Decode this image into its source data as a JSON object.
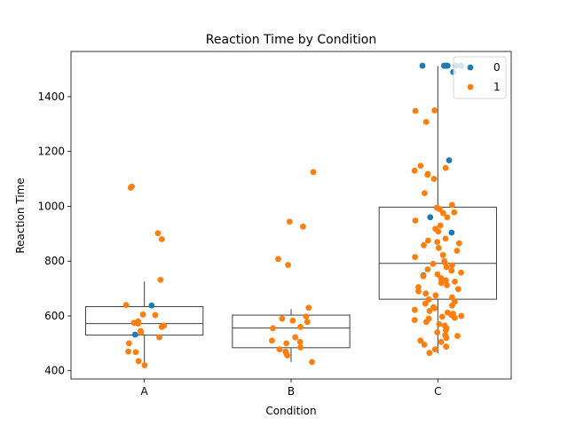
{
  "chart_data": {
    "type": "box+strip",
    "title": "Reaction Time by Condition",
    "xlabel": "Condition",
    "ylabel": "Reaction Time",
    "categories": [
      "A",
      "B",
      "C"
    ],
    "ylim": [
      370,
      1565
    ],
    "yticks": [
      400,
      600,
      800,
      1000,
      1200,
      1400
    ],
    "grid": false,
    "legend": {
      "placement": "top-right",
      "entries": [
        {
          "label": "0",
          "color": "#1f77b4"
        },
        {
          "label": "1",
          "color": "#ff7f0e"
        }
      ]
    },
    "box_stats": [
      {
        "category": "A",
        "whisker_low": 420,
        "q1": 530,
        "median": 572,
        "q3": 634,
        "whisker_high": 726
      },
      {
        "category": "B",
        "whisker_low": 432,
        "q1": 484,
        "median": 556,
        "q3": 603,
        "whisker_high": 625
      },
      {
        "category": "C",
        "whisker_low": 463,
        "q1": 661,
        "median": 792,
        "q3": 997,
        "whisker_high": 1512
      }
    ],
    "series": [
      {
        "name": "0",
        "color": "#1f77b4",
        "points": [
          {
            "x": "A",
            "y": 638
          },
          {
            "x": "A",
            "y": 532
          },
          {
            "x": "C",
            "y": 1513
          },
          {
            "x": "C",
            "y": 1513
          },
          {
            "x": "C",
            "y": 1513
          },
          {
            "x": "C",
            "y": 1513
          },
          {
            "x": "C",
            "y": 1513
          },
          {
            "x": "C",
            "y": 1513
          },
          {
            "x": "C",
            "y": 1513
          },
          {
            "x": "C",
            "y": 1490
          },
          {
            "x": "C",
            "y": 1168
          },
          {
            "x": "C",
            "y": 960
          },
          {
            "x": "C",
            "y": 904
          },
          {
            "x": "C",
            "y": 748
          },
          {
            "x": "C",
            "y": 732
          }
        ]
      },
      {
        "name": "1",
        "color": "#ff7f0e",
        "points": [
          {
            "x": "A",
            "y": 1072
          },
          {
            "x": "A",
            "y": 1068
          },
          {
            "x": "A",
            "y": 902
          },
          {
            "x": "A",
            "y": 880
          },
          {
            "x": "A",
            "y": 732
          },
          {
            "x": "A",
            "y": 640
          },
          {
            "x": "A",
            "y": 605
          },
          {
            "x": "A",
            "y": 603
          },
          {
            "x": "A",
            "y": 580
          },
          {
            "x": "A",
            "y": 575
          },
          {
            "x": "A",
            "y": 572
          },
          {
            "x": "A",
            "y": 565
          },
          {
            "x": "A",
            "y": 560
          },
          {
            "x": "A",
            "y": 545
          },
          {
            "x": "A",
            "y": 540
          },
          {
            "x": "A",
            "y": 522
          },
          {
            "x": "A",
            "y": 500
          },
          {
            "x": "A",
            "y": 470
          },
          {
            "x": "A",
            "y": 468
          },
          {
            "x": "A",
            "y": 435
          },
          {
            "x": "A",
            "y": 420
          },
          {
            "x": "B",
            "y": 1125
          },
          {
            "x": "B",
            "y": 944
          },
          {
            "x": "B",
            "y": 926
          },
          {
            "x": "B",
            "y": 808
          },
          {
            "x": "B",
            "y": 786
          },
          {
            "x": "B",
            "y": 630
          },
          {
            "x": "B",
            "y": 598
          },
          {
            "x": "B",
            "y": 590
          },
          {
            "x": "B",
            "y": 583
          },
          {
            "x": "B",
            "y": 578
          },
          {
            "x": "B",
            "y": 560
          },
          {
            "x": "B",
            "y": 555
          },
          {
            "x": "B",
            "y": 522
          },
          {
            "x": "B",
            "y": 510
          },
          {
            "x": "B",
            "y": 505
          },
          {
            "x": "B",
            "y": 500
          },
          {
            "x": "B",
            "y": 485
          },
          {
            "x": "B",
            "y": 478
          },
          {
            "x": "B",
            "y": 470
          },
          {
            "x": "B",
            "y": 462
          },
          {
            "x": "B",
            "y": 456
          },
          {
            "x": "B",
            "y": 432
          },
          {
            "x": "C",
            "y": 1350
          },
          {
            "x": "C",
            "y": 1348
          },
          {
            "x": "C",
            "y": 1308
          },
          {
            "x": "C",
            "y": 1148
          },
          {
            "x": "C",
            "y": 1140
          },
          {
            "x": "C",
            "y": 1130
          },
          {
            "x": "C",
            "y": 1118
          },
          {
            "x": "C",
            "y": 1115
          },
          {
            "x": "C",
            "y": 1100
          },
          {
            "x": "C",
            "y": 1048
          },
          {
            "x": "C",
            "y": 1005
          },
          {
            "x": "C",
            "y": 995
          },
          {
            "x": "C",
            "y": 990
          },
          {
            "x": "C",
            "y": 978
          },
          {
            "x": "C",
            "y": 975
          },
          {
            "x": "C",
            "y": 960
          },
          {
            "x": "C",
            "y": 948
          },
          {
            "x": "C",
            "y": 930
          },
          {
            "x": "C",
            "y": 918
          },
          {
            "x": "C",
            "y": 908
          },
          {
            "x": "C",
            "y": 882
          },
          {
            "x": "C",
            "y": 875
          },
          {
            "x": "C",
            "y": 870
          },
          {
            "x": "C",
            "y": 865
          },
          {
            "x": "C",
            "y": 858
          },
          {
            "x": "C",
            "y": 848
          },
          {
            "x": "C",
            "y": 838
          },
          {
            "x": "C",
            "y": 822
          },
          {
            "x": "C",
            "y": 815
          },
          {
            "x": "C",
            "y": 800
          },
          {
            "x": "C",
            "y": 795
          },
          {
            "x": "C",
            "y": 790
          },
          {
            "x": "C",
            "y": 785
          },
          {
            "x": "C",
            "y": 778
          },
          {
            "x": "C",
            "y": 770
          },
          {
            "x": "C",
            "y": 765
          },
          {
            "x": "C",
            "y": 758
          },
          {
            "x": "C",
            "y": 752
          },
          {
            "x": "C",
            "y": 745
          },
          {
            "x": "C",
            "y": 738
          },
          {
            "x": "C",
            "y": 730
          },
          {
            "x": "C",
            "y": 725
          },
          {
            "x": "C",
            "y": 720
          },
          {
            "x": "C",
            "y": 712
          },
          {
            "x": "C",
            "y": 705
          },
          {
            "x": "C",
            "y": 698
          },
          {
            "x": "C",
            "y": 690
          },
          {
            "x": "C",
            "y": 682
          },
          {
            "x": "C",
            "y": 675
          },
          {
            "x": "C",
            "y": 668
          },
          {
            "x": "C",
            "y": 660
          },
          {
            "x": "C",
            "y": 652
          },
          {
            "x": "C",
            "y": 645
          },
          {
            "x": "C",
            "y": 638
          },
          {
            "x": "C",
            "y": 632
          },
          {
            "x": "C",
            "y": 628
          },
          {
            "x": "C",
            "y": 622
          },
          {
            "x": "C",
            "y": 618
          },
          {
            "x": "C",
            "y": 612
          },
          {
            "x": "C",
            "y": 608
          },
          {
            "x": "C",
            "y": 603
          },
          {
            "x": "C",
            "y": 600
          },
          {
            "x": "C",
            "y": 597
          },
          {
            "x": "C",
            "y": 593
          },
          {
            "x": "C",
            "y": 590
          },
          {
            "x": "C",
            "y": 585
          },
          {
            "x": "C",
            "y": 578
          },
          {
            "x": "C",
            "y": 570
          },
          {
            "x": "C",
            "y": 565
          },
          {
            "x": "C",
            "y": 555
          },
          {
            "x": "C",
            "y": 548
          },
          {
            "x": "C",
            "y": 540
          },
          {
            "x": "C",
            "y": 530
          },
          {
            "x": "C",
            "y": 527
          },
          {
            "x": "C",
            "y": 520
          },
          {
            "x": "C",
            "y": 510
          },
          {
            "x": "C",
            "y": 505
          },
          {
            "x": "C",
            "y": 495
          },
          {
            "x": "C",
            "y": 488
          },
          {
            "x": "C",
            "y": 478
          },
          {
            "x": "C",
            "y": 465
          }
        ]
      }
    ]
  }
}
